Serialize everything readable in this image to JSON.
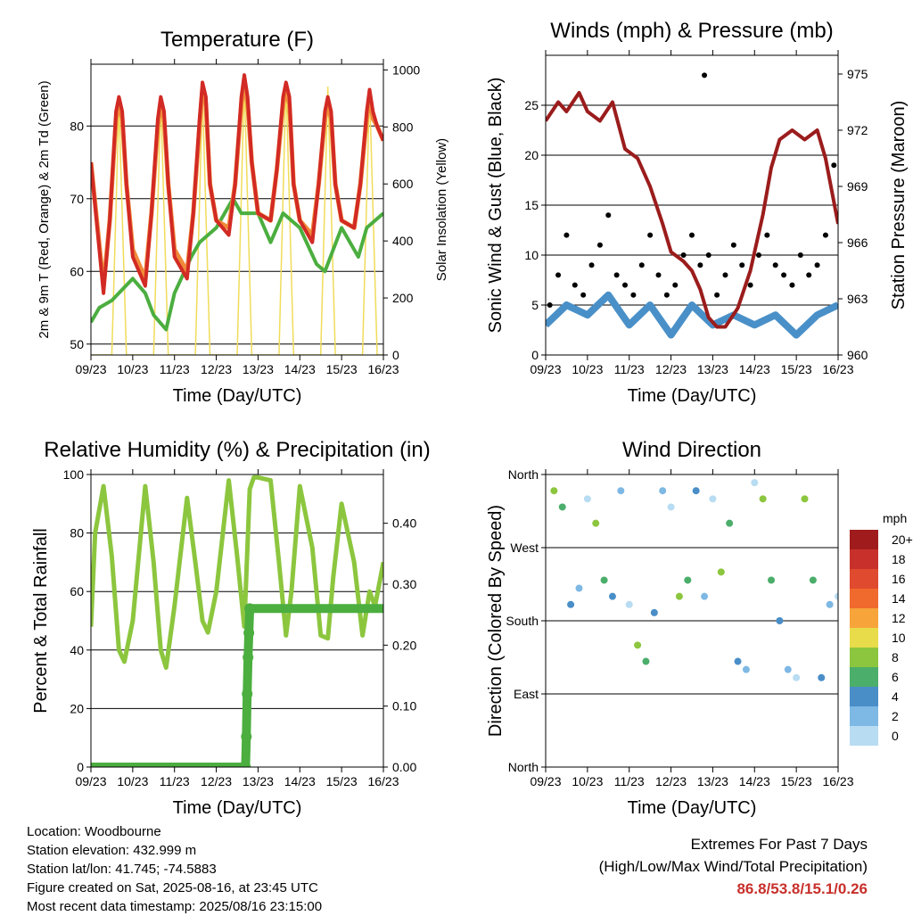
{
  "chart_data": [
    {
      "type": "line",
      "title": "Temperature (F)",
      "xlabel": "Time (Day/UTC)",
      "ylabel": "2m & 9m T (Red, Orange) & 2m Td (Green)",
      "ylabel_right": "Solar Insolation (Yellow)",
      "x_ticks": [
        "09/23",
        "10/23",
        "11/23",
        "12/23",
        "13/23",
        "14/23",
        "15/23",
        "16/23"
      ],
      "ylim": [
        48.5,
        88.5
      ],
      "y_ticks": [
        50,
        60,
        70,
        80
      ],
      "ylim_right": [
        0,
        1020
      ],
      "y_ticks_right": [
        0,
        200,
        400,
        600,
        800,
        1000
      ],
      "colors": {
        "t2m": "#d22a24",
        "t9m": "#f08a3a",
        "td": "#4bae3f",
        "solar": "#f0dc5a"
      },
      "series": [
        {
          "name": "2m T",
          "axis": "left",
          "x": [
            0,
            0.3,
            0.45,
            0.6,
            0.67,
            0.75,
            0.85,
            1.0,
            1.3,
            1.45,
            1.6,
            1.67,
            1.75,
            1.85,
            2.0,
            2.3,
            2.45,
            2.6,
            2.67,
            2.75,
            2.85,
            3.0,
            3.3,
            3.45,
            3.6,
            3.67,
            3.75,
            3.85,
            4.0,
            4.3,
            4.45,
            4.6,
            4.67,
            4.75,
            4.85,
            5.0,
            5.3,
            5.45,
            5.6,
            5.67,
            5.75,
            5.85,
            6.0,
            6.3,
            6.45,
            6.6,
            6.67,
            6.75,
            6.85,
            7.0
          ],
          "values": [
            75,
            57,
            67,
            82,
            84,
            82,
            72,
            62,
            58,
            68,
            81,
            84,
            82,
            72,
            62,
            59,
            68,
            81,
            86,
            84,
            72,
            67,
            65,
            72,
            84,
            87,
            84,
            75,
            68,
            67,
            74,
            84,
            86,
            84,
            72,
            67,
            64,
            72,
            82,
            84,
            82,
            72,
            67,
            66,
            72,
            82,
            85,
            82,
            80,
            78
          ]
        },
        {
          "name": "9m T",
          "axis": "left",
          "x": [
            0,
            0.3,
            0.45,
            0.6,
            0.67,
            0.75,
            0.85,
            1.0,
            1.3,
            1.45,
            1.6,
            1.67,
            1.75,
            1.85,
            2.0,
            2.3,
            2.45,
            2.6,
            2.67,
            2.75,
            2.85,
            3.0,
            3.3,
            3.45,
            3.6,
            3.67,
            3.75,
            3.85,
            4.0,
            4.3,
            4.45,
            4.6,
            4.67,
            4.75,
            4.85,
            5.0,
            5.3,
            5.45,
            5.6,
            5.67,
            5.75,
            5.85,
            6.0,
            6.3,
            6.45,
            6.6,
            6.67,
            6.75,
            6.85,
            7.0
          ],
          "values": [
            75,
            58,
            67,
            81,
            83,
            81,
            72,
            63,
            59,
            68,
            80,
            83,
            81,
            72,
            63,
            60,
            68,
            80,
            85,
            83,
            72,
            67,
            66,
            72,
            83,
            86,
            83,
            75,
            68,
            67,
            74,
            83,
            85,
            83,
            72,
            67,
            65,
            72,
            81,
            83,
            81,
            72,
            67,
            66,
            72,
            81,
            84,
            81,
            80,
            78
          ]
        },
        {
          "name": "2m Td",
          "axis": "left",
          "x": [
            0,
            0.2,
            0.5,
            1.0,
            1.3,
            1.5,
            1.8,
            2.0,
            2.4,
            2.6,
            3.0,
            3.4,
            3.6,
            4.0,
            4.3,
            4.6,
            5.0,
            5.4,
            5.6,
            6.0,
            6.4,
            6.6,
            7.0
          ],
          "values": [
            53,
            55,
            56,
            59,
            57,
            54,
            52,
            57,
            62,
            64,
            66,
            70,
            68,
            68,
            64,
            68,
            66,
            61,
            60,
            66,
            62,
            66,
            68
          ]
        },
        {
          "name": "Solar Insolation",
          "axis": "right",
          "x": [
            0,
            0.5,
            0.67,
            0.85,
            1.0,
            1.5,
            1.67,
            1.85,
            2.0,
            2.5,
            2.67,
            2.85,
            3.0,
            3.5,
            3.67,
            3.85,
            4.0,
            4.5,
            4.67,
            4.85,
            5.0,
            5.5,
            5.67,
            5.85,
            6.0,
            6.5,
            6.67,
            6.85,
            7.0
          ],
          "values": [
            0,
            0,
            880,
            0,
            0,
            0,
            900,
            0,
            0,
            0,
            920,
            0,
            0,
            0,
            960,
            0,
            0,
            0,
            960,
            0,
            0,
            0,
            940,
            0,
            0,
            0,
            930,
            0,
            0
          ]
        }
      ]
    },
    {
      "type": "scatter",
      "title": "Winds (mph) & Pressure (mb)",
      "xlabel": "Time (Day/UTC)",
      "ylabel": "Sonic Wind & Gust (Blue, Black)",
      "ylabel_right": "Station Pressure (Maroon)",
      "x_ticks": [
        "09/23",
        "10/23",
        "11/23",
        "12/23",
        "13/23",
        "14/23",
        "15/23",
        "16/23"
      ],
      "ylim": [
        0,
        30
      ],
      "y_ticks": [
        0,
        5,
        10,
        15,
        20,
        25
      ],
      "ylim_right": [
        960,
        976
      ],
      "y_ticks_right": [
        960,
        963,
        966,
        969,
        972,
        975
      ],
      "colors": {
        "wind": "#4a90c8",
        "gust": "#000000",
        "pressure": "#9b1c1c"
      },
      "series": [
        {
          "name": "Sonic Wind",
          "axis": "left",
          "x": [
            0,
            0.5,
            1.0,
            1.5,
            2.0,
            2.5,
            3.0,
            3.5,
            4.0,
            4.5,
            5.0,
            5.5,
            6.0,
            6.5,
            7.0
          ],
          "values": [
            3,
            5,
            4,
            6,
            3,
            5,
            2,
            5,
            3,
            4,
            3,
            4,
            2,
            4,
            5
          ]
        },
        {
          "name": "Gust",
          "axis": "left",
          "x": [
            0.1,
            0.3,
            0.5,
            0.7,
            0.9,
            1.1,
            1.3,
            1.5,
            1.7,
            1.9,
            2.1,
            2.3,
            2.5,
            2.7,
            2.9,
            3.1,
            3.3,
            3.5,
            3.7,
            3.8,
            3.9,
            4.1,
            4.3,
            4.5,
            4.7,
            4.9,
            5.1,
            5.3,
            5.5,
            5.7,
            5.9,
            6.1,
            6.3,
            6.5,
            6.7,
            6.9
          ],
          "values": [
            5,
            8,
            12,
            7,
            6,
            9,
            11,
            14,
            8,
            7,
            6,
            9,
            12,
            8,
            6,
            7,
            10,
            12,
            9,
            28,
            10,
            6,
            8,
            11,
            9,
            7,
            10,
            12,
            9,
            8,
            7,
            10,
            8,
            9,
            12,
            19
          ]
        },
        {
          "name": "Station Pressure",
          "axis": "right",
          "x": [
            0,
            0.3,
            0.5,
            0.8,
            1.0,
            1.3,
            1.6,
            1.9,
            2.2,
            2.5,
            2.8,
            3.0,
            3.3,
            3.5,
            3.7,
            3.9,
            4.1,
            4.3,
            4.6,
            4.9,
            5.2,
            5.4,
            5.6,
            5.9,
            6.2,
            6.5,
            6.7,
            7.0
          ],
          "values": [
            972.5,
            973.5,
            973.0,
            974.0,
            973.0,
            972.5,
            973.5,
            971.0,
            970.5,
            969.0,
            967.0,
            965.5,
            965.0,
            964.5,
            963.5,
            962.0,
            961.5,
            961.5,
            962.5,
            964.5,
            967.5,
            970.0,
            971.5,
            972.0,
            971.5,
            972.0,
            970.5,
            967.0
          ]
        }
      ]
    },
    {
      "type": "line",
      "title": "Relative Humidity (%) & Precipitation (in)",
      "xlabel": "Time (Day/UTC)",
      "ylabel": "Percent & Total Rainfall",
      "x_ticks": [
        "09/23",
        "10/23",
        "11/23",
        "12/23",
        "13/23",
        "14/23",
        "15/23",
        "16/23"
      ],
      "ylim": [
        0,
        100
      ],
      "y_ticks": [
        0,
        20,
        40,
        60,
        80,
        100
      ],
      "ylim_right": [
        0,
        0.48
      ],
      "y_ticks_right": [
        "0.00",
        "0.10",
        "0.20",
        "0.30",
        "0.40"
      ],
      "colors": {
        "rh": "#8cc63e",
        "precip": "#4bae3f"
      },
      "series": [
        {
          "name": "Relative Humidity",
          "axis": "left",
          "x": [
            0,
            0.1,
            0.3,
            0.5,
            0.67,
            0.8,
            1.0,
            1.3,
            1.5,
            1.67,
            1.8,
            2.0,
            2.3,
            2.5,
            2.67,
            2.8,
            3.0,
            3.3,
            3.5,
            3.67,
            3.8,
            3.9,
            4.0,
            4.3,
            4.5,
            4.67,
            4.8,
            5.0,
            5.3,
            5.5,
            5.67,
            5.8,
            6.0,
            6.3,
            6.5,
            6.67,
            6.8,
            7.0
          ],
          "values": [
            48,
            80,
            96,
            72,
            40,
            36,
            50,
            96,
            70,
            40,
            34,
            55,
            92,
            70,
            50,
            46,
            60,
            98,
            72,
            48,
            95,
            99,
            99,
            98,
            70,
            45,
            60,
            96,
            75,
            45,
            44,
            65,
            90,
            70,
            45,
            60,
            55,
            70
          ]
        },
        {
          "name": "Total Precipitation",
          "axis": "right",
          "x": [
            0,
            1,
            2,
            3,
            3.7,
            3.72,
            3.74,
            3.76,
            3.78,
            3.8,
            4,
            5,
            6,
            7
          ],
          "values": [
            0,
            0,
            0,
            0,
            0,
            0.05,
            0.12,
            0.18,
            0.22,
            0.26,
            0.26,
            0.26,
            0.26,
            0.26
          ]
        }
      ]
    },
    {
      "type": "scatter",
      "title": "Wind Direction",
      "xlabel": "Time (Day/UTC)",
      "ylabel": "Direction (Colored By Speed)",
      "x_ticks": [
        "09/23",
        "10/23",
        "11/23",
        "12/23",
        "13/23",
        "14/23",
        "15/23",
        "16/23"
      ],
      "y_ticks": [
        "North",
        "East",
        "South",
        "West",
        "North"
      ],
      "ylim": [
        0,
        360
      ],
      "legend_title": "mph",
      "legend_labels": [
        "20+",
        "18",
        "16",
        "14",
        "12",
        "10",
        "8",
        "6",
        "4",
        "2",
        "0"
      ],
      "legend_colors": [
        "#a01c1c",
        "#c8302b",
        "#e04a2e",
        "#f06a2e",
        "#f7a43a",
        "#e8dc4a",
        "#8cc63e",
        "#4bae6a",
        "#4a8ec8",
        "#7eb8e4",
        "#b8dcf2"
      ],
      "legend_position": "right",
      "series": [
        {
          "name": "Wind Direction",
          "x": [
            0.2,
            0.4,
            0.6,
            0.8,
            1.0,
            1.2,
            1.4,
            1.6,
            1.8,
            2.0,
            2.2,
            2.4,
            2.6,
            2.8,
            3.0,
            3.2,
            3.4,
            3.6,
            3.8,
            4.0,
            4.2,
            4.4,
            4.6,
            4.8,
            5.0,
            5.2,
            5.4,
            5.6,
            5.8,
            6.0,
            6.2,
            6.4,
            6.6,
            6.8,
            7.0
          ],
          "values": [
            340,
            320,
            200,
            220,
            330,
            300,
            230,
            210,
            340,
            200,
            150,
            130,
            190,
            340,
            320,
            210,
            230,
            340,
            210,
            330,
            240,
            300,
            130,
            120,
            350,
            330,
            230,
            180,
            120,
            110,
            330,
            230,
            110,
            200,
            210
          ]
        }
      ]
    }
  ],
  "footer": {
    "location": "Location: Woodbourne",
    "elevation": "Station elevation: 432.999 m",
    "latlon": "Station lat/lon: 41.745; -74.5883",
    "created": "Figure created on Sat, 2025-08-16, at 23:45 UTC",
    "recent": "Most recent data timestamp: 2025/08/16 23:15:00"
  },
  "extremes": {
    "heading": "Extremes For Past 7 Days",
    "subheading": "(High/Low/Max Wind/Total Precipitation)",
    "values": "86.8/53.8/15.1/0.26"
  }
}
